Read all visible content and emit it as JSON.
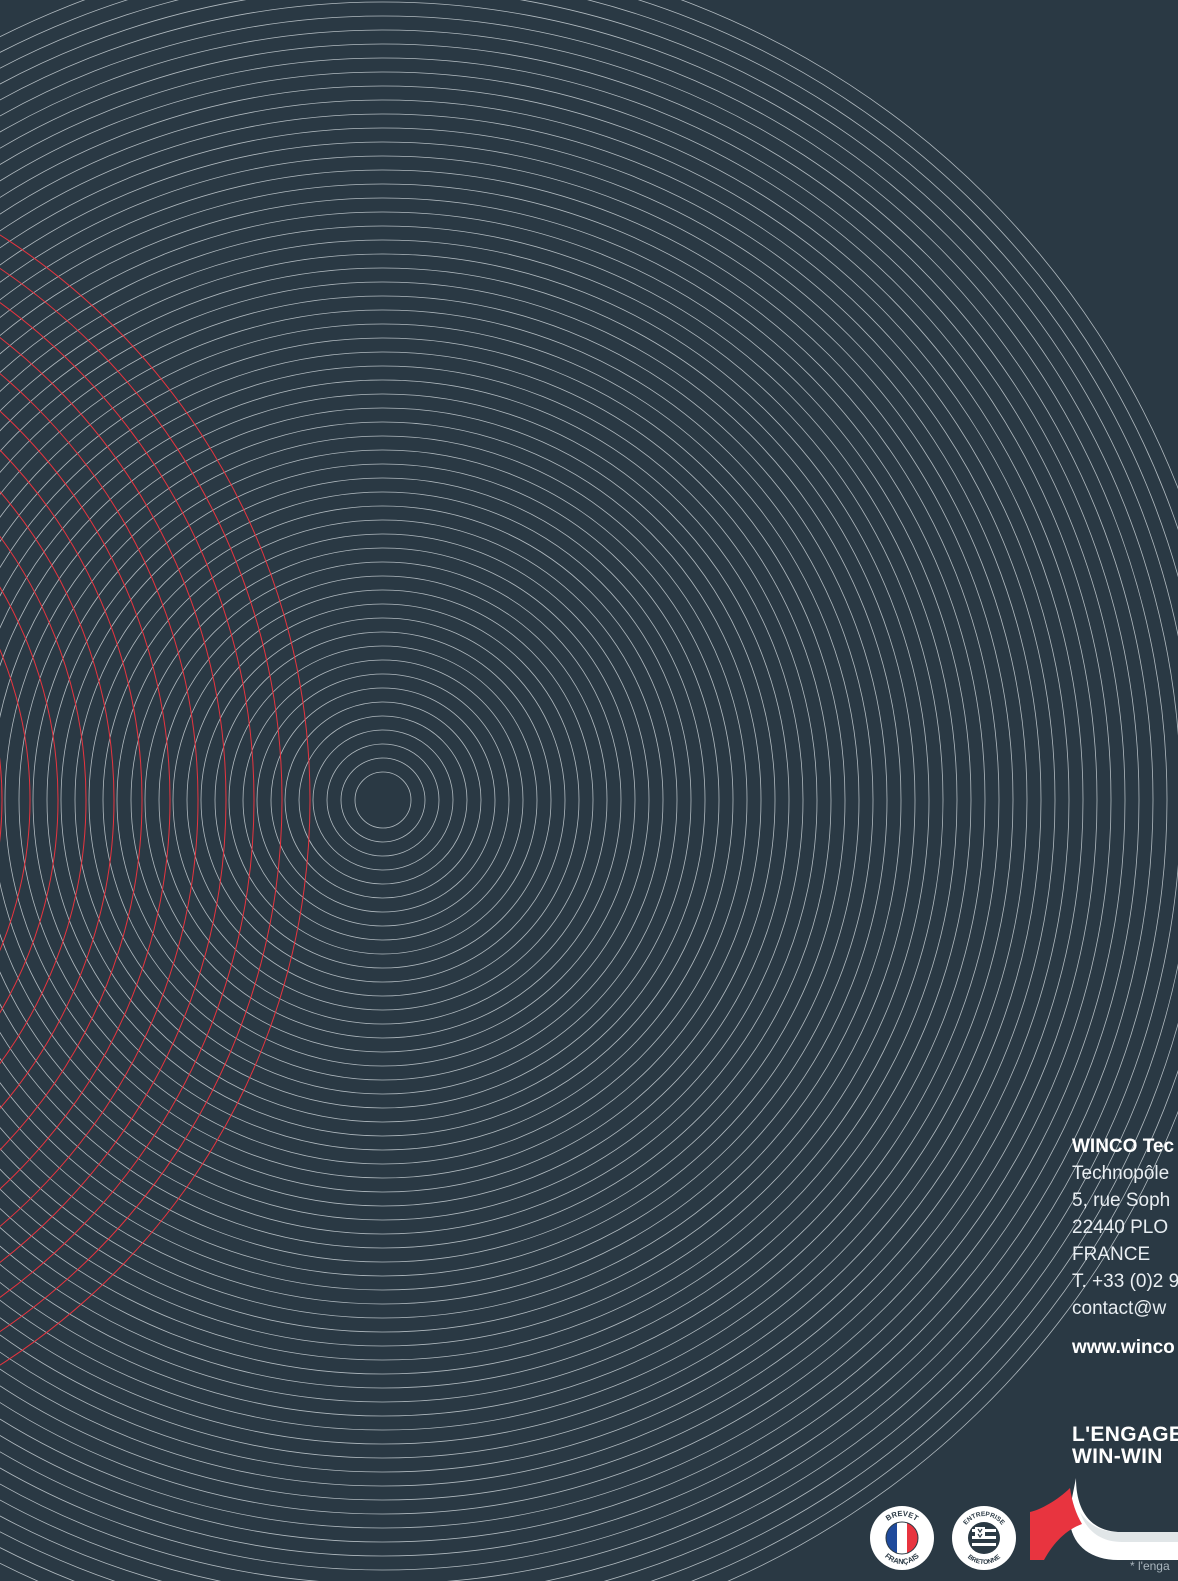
{
  "contact": {
    "company": "WINCO Tec",
    "address_line_1": "Technopôle",
    "address_line_2": "5, rue Soph",
    "address_line_3": "22440 PLO",
    "country": "FRANCE",
    "phone": "T. +33 (0)2 9",
    "email": "contact@w",
    "website": "www.winco"
  },
  "slogan": {
    "line_1": "L'ENGAGE",
    "line_2": "WIN-WIN"
  },
  "footnote": "* l'enga",
  "badges": {
    "brevet": {
      "top_text": "BREVET",
      "bottom_text": "FRANÇAIS",
      "icon": "french-flag-icon"
    },
    "bretonne": {
      "top_text": "ENTREPRISE",
      "bottom_text": "BRETONNE",
      "icon": "breton-flag-icon"
    }
  },
  "colors": {
    "background": "#2a3944",
    "ring_gray": "#c9d1d6",
    "ring_red": "#e8343f",
    "text_white": "#ffffff",
    "flag_blue": "#1f4a9c",
    "flag_red": "#e8343f"
  }
}
